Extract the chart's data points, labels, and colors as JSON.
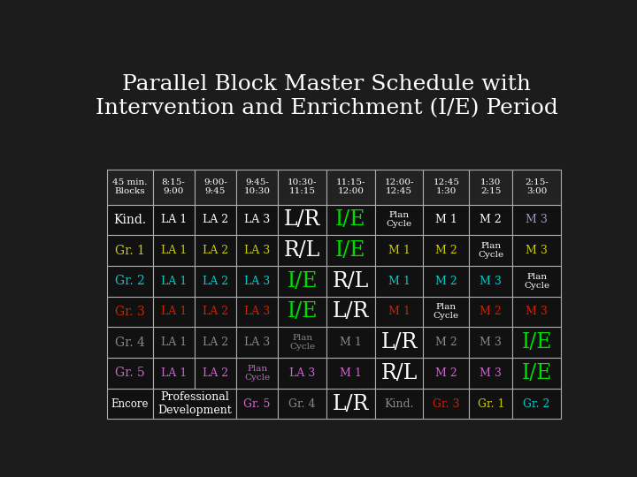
{
  "title": "Parallel Block Master Schedule with\nIntervention and Enrichment (I/E) Period",
  "background_color": "#1c1c1c",
  "title_color": "#ffffff",
  "cell_border_color": "#aaaaaa",
  "col_headers": [
    "45 min.\nBlocks",
    "8:15-\n9:00",
    "9:00-\n9:45",
    "9:45-\n10:30",
    "10:30-\n11:15",
    "11:15-\n12:00",
    "12:00-\n12:45",
    "12:45\n1:30",
    "1:30\n2:15",
    "2:15-\n3:00"
  ],
  "rows": [
    {
      "label": "Kind.",
      "label_color": "#ffffff",
      "cells": [
        {
          "text": "LA 1",
          "color": "#ffffff",
          "fs": "small"
        },
        {
          "text": "LA 2",
          "color": "#ffffff",
          "fs": "small"
        },
        {
          "text": "LA 3",
          "color": "#ffffff",
          "fs": "small"
        },
        {
          "text": "L/R",
          "color": "#ffffff",
          "fs": "large"
        },
        {
          "text": "I/E",
          "color": "#00dd00",
          "fs": "large"
        },
        {
          "text": "Plan\nCycle",
          "color": "#ffffff",
          "fs": "tiny"
        },
        {
          "text": "M 1",
          "color": "#ffffff",
          "fs": "small"
        },
        {
          "text": "M 2",
          "color": "#ffffff",
          "fs": "small"
        },
        {
          "text": "M 3",
          "color": "#9999bb",
          "fs": "small"
        }
      ]
    },
    {
      "label": "Gr. 1",
      "label_color": "#cccc00",
      "cells": [
        {
          "text": "LA 1",
          "color": "#cccc00",
          "fs": "small"
        },
        {
          "text": "LA 2",
          "color": "#cccc00",
          "fs": "small"
        },
        {
          "text": "LA 3",
          "color": "#cccc00",
          "fs": "small"
        },
        {
          "text": "R/L",
          "color": "#ffffff",
          "fs": "large"
        },
        {
          "text": "I/E",
          "color": "#00dd00",
          "fs": "large"
        },
        {
          "text": "M 1",
          "color": "#cccc00",
          "fs": "small"
        },
        {
          "text": "M 2",
          "color": "#cccc00",
          "fs": "small"
        },
        {
          "text": "Plan\nCycle",
          "color": "#ffffff",
          "fs": "tiny"
        },
        {
          "text": "M 3",
          "color": "#cccc00",
          "fs": "small"
        }
      ]
    },
    {
      "label": "Gr. 2",
      "label_color": "#00cccc",
      "cells": [
        {
          "text": "LA 1",
          "color": "#00cccc",
          "fs": "small"
        },
        {
          "text": "LA 2",
          "color": "#00cccc",
          "fs": "small"
        },
        {
          "text": "LA 3",
          "color": "#00cccc",
          "fs": "small"
        },
        {
          "text": "I/E",
          "color": "#00dd00",
          "fs": "large"
        },
        {
          "text": "R/L",
          "color": "#ffffff",
          "fs": "large"
        },
        {
          "text": "M 1",
          "color": "#00cccc",
          "fs": "small"
        },
        {
          "text": "M 2",
          "color": "#00cccc",
          "fs": "small"
        },
        {
          "text": "M 3",
          "color": "#00cccc",
          "fs": "small"
        },
        {
          "text": "Plan\nCycle",
          "color": "#ffffff",
          "fs": "tiny"
        }
      ]
    },
    {
      "label": "Gr. 3",
      "label_color": "#cc2200",
      "cells": [
        {
          "text": "LA 1",
          "color": "#cc2200",
          "fs": "small"
        },
        {
          "text": "LA 2",
          "color": "#cc2200",
          "fs": "small"
        },
        {
          "text": "LA 3",
          "color": "#cc2200",
          "fs": "small"
        },
        {
          "text": "I/E",
          "color": "#00dd00",
          "fs": "large"
        },
        {
          "text": "L/R",
          "color": "#ffffff",
          "fs": "large"
        },
        {
          "text": "M 1",
          "color": "#cc2200",
          "fs": "small"
        },
        {
          "text": "Plan\nCycle",
          "color": "#ffffff",
          "fs": "tiny"
        },
        {
          "text": "M 2",
          "color": "#cc2200",
          "fs": "small"
        },
        {
          "text": "M 3",
          "color": "#cc2200",
          "fs": "small"
        }
      ]
    },
    {
      "label": "Gr. 4",
      "label_color": "#888888",
      "cells": [
        {
          "text": "LA 1",
          "color": "#888888",
          "fs": "small"
        },
        {
          "text": "LA 2",
          "color": "#888888",
          "fs": "small"
        },
        {
          "text": "LA 3",
          "color": "#888888",
          "fs": "small"
        },
        {
          "text": "Plan\nCycle",
          "color": "#888888",
          "fs": "tiny"
        },
        {
          "text": "M 1",
          "color": "#888888",
          "fs": "small"
        },
        {
          "text": "L/R",
          "color": "#ffffff",
          "fs": "large"
        },
        {
          "text": "M 2",
          "color": "#888888",
          "fs": "small"
        },
        {
          "text": "M 3",
          "color": "#888888",
          "fs": "small"
        },
        {
          "text": "I/E",
          "color": "#00dd00",
          "fs": "large"
        }
      ]
    },
    {
      "label": "Gr. 5",
      "label_color": "#cc66cc",
      "cells": [
        {
          "text": "LA 1",
          "color": "#cc66cc",
          "fs": "small"
        },
        {
          "text": "LA 2",
          "color": "#cc66cc",
          "fs": "small"
        },
        {
          "text": "Plan\nCycle",
          "color": "#cc66cc",
          "fs": "tiny"
        },
        {
          "text": "LA 3",
          "color": "#cc66cc",
          "fs": "small"
        },
        {
          "text": "M 1",
          "color": "#cc66cc",
          "fs": "small"
        },
        {
          "text": "R/L",
          "color": "#ffffff",
          "fs": "large"
        },
        {
          "text": "M 2",
          "color": "#cc66cc",
          "fs": "small"
        },
        {
          "text": "M 3",
          "color": "#cc66cc",
          "fs": "small"
        },
        {
          "text": "I/E",
          "color": "#00dd00",
          "fs": "large"
        }
      ]
    },
    {
      "label": "Encore",
      "label_color": "#ffffff",
      "encore": true,
      "cells": [
        {
          "text": "Professional\nDevelopment",
          "color": "#ffffff",
          "fs": "small",
          "span": 2
        },
        {
          "text": "Gr. 5",
          "color": "#cc66cc",
          "fs": "small"
        },
        {
          "text": "Gr. 4",
          "color": "#888888",
          "fs": "small"
        },
        {
          "text": "L/R",
          "color": "#ffffff",
          "fs": "large"
        },
        {
          "text": "Kind.",
          "color": "#888888",
          "fs": "small"
        },
        {
          "text": "Gr. 3",
          "color": "#cc2200",
          "fs": "small"
        },
        {
          "text": "Gr. 1",
          "color": "#cccc00",
          "fs": "small"
        },
        {
          "text": "Gr. 2",
          "color": "#00cccc",
          "fs": "small"
        }
      ]
    }
  ],
  "header_color": "#ffffff",
  "fs_large": 17,
  "fs_small": 9,
  "fs_tiny": 7.5,
  "fs_label": 10,
  "fs_header": 7.5
}
